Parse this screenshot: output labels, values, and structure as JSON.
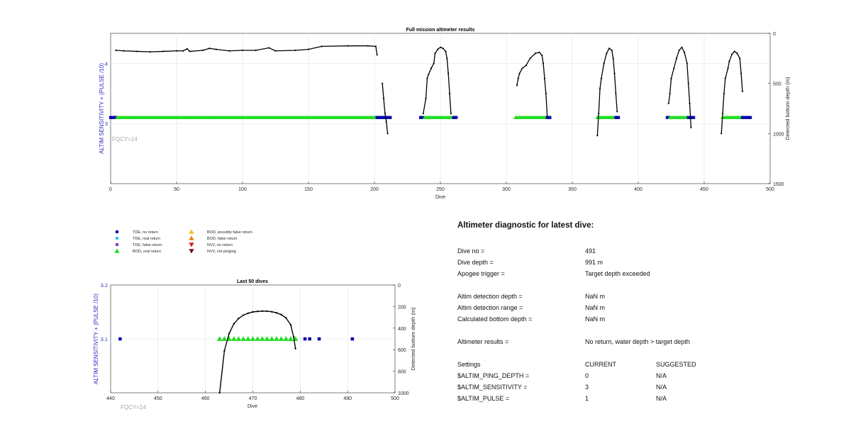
{
  "main_chart": {
    "title": "Full mission altimeter results",
    "xlabel": "Dive",
    "ylabel_left": "ALTIM SENSITIVITY + (PULSE /10)",
    "ylabel_right": "Detected bottom depth (m)",
    "fqcy": "FQCY=14",
    "x_ticks": [
      "0",
      "50",
      "100",
      "150",
      "200",
      "250",
      "300",
      "350",
      "400",
      "450",
      "500"
    ],
    "left_ticks": [
      "4",
      "3"
    ],
    "right_ticks": [
      "0",
      "500",
      "1000",
      "1500"
    ]
  },
  "zoom_chart": {
    "title": "Last 50 dives",
    "xlabel": "Dive",
    "ylabel_left": "ALTIM SENSITIVITY + (PULSE /10)",
    "ylabel_right": "Detected bottom depth (m)",
    "fqcy": "FQCY=14",
    "x_ticks": [
      "440",
      "450",
      "460",
      "470",
      "480",
      "490",
      "500"
    ],
    "left_ticks": [
      "3.2",
      "3.1"
    ],
    "right_ticks": [
      "0",
      "200",
      "400",
      "600",
      "800",
      "1000"
    ]
  },
  "legend": [
    {
      "label": "TDE, no return",
      "symbol": "square",
      "color": "#0000aa"
    },
    {
      "label": "TDE, real return",
      "symbol": "square",
      "color": "#2ec6e6"
    },
    {
      "label": "TDE, false return",
      "symbol": "square",
      "color": "#8040c0"
    },
    {
      "label": "BOD, real return",
      "symbol": "triangle-up",
      "color": "#22dd22"
    },
    {
      "label": "BOD, possibly false return",
      "symbol": "triangle-up",
      "color": "#f2c20c"
    },
    {
      "label": "BOD, false return",
      "symbol": "triangle-up",
      "color": "#f07a10"
    },
    {
      "label": "NVV, no return",
      "symbol": "triangle-down",
      "color": "#d02020"
    },
    {
      "label": "NVV, not pinging",
      "symbol": "triangle-down",
      "color": "#701010"
    }
  ],
  "diagnostic": {
    "title": "Altimeter diagnostic for latest dive:",
    "dive_no_label": "Dive no =",
    "dive_no": "491",
    "dive_depth_label": "Dive depth =",
    "dive_depth": "991 m",
    "apogee_label": "Apogee trigger =",
    "apogee": "Target depth exceeded",
    "det_depth_label": "Altim detection depth =",
    "det_depth": "NaN m",
    "det_range_label": "Altim detection range =",
    "det_range": "NaN m",
    "bottom_label": "Calculated bottom depth =",
    "bottom": "NaN m",
    "results_label": "Altimeter results =",
    "results": "No return, water depth > target depth",
    "settings_label": "Settings",
    "current_label": "CURRENT",
    "suggested_label": "SUGGESTED",
    "settings": [
      {
        "name": "$ALTIM_PING_DEPTH =",
        "current": "0",
        "suggested": "N/A"
      },
      {
        "name": "$ALTIM_SENSITIVITY =",
        "current": "3",
        "suggested": "N/A"
      },
      {
        "name": "$ALTIM_PULSE =",
        "current": "1",
        "suggested": "N/A"
      }
    ]
  },
  "chart_data": [
    {
      "type": "scatter",
      "title": "Full mission altimeter results",
      "xlabel": "Dive",
      "ylabel": "ALTIM SENSITIVITY + (PULSE /10)",
      "y2label": "Detected bottom depth (m)",
      "xlim": [
        0,
        500
      ],
      "y2lim_reversed": [
        0,
        1500
      ],
      "markers_y": 3.1,
      "marker_ranges": [
        {
          "kind": "TDE, no return",
          "from": 0,
          "to": 4
        },
        {
          "kind": "BOD, real return",
          "from": 5,
          "to": 201
        },
        {
          "kind": "TDE, no return",
          "from": 202,
          "to": 212
        },
        {
          "kind": "TDE, no return",
          "from": 235,
          "to": 237
        },
        {
          "kind": "BOD, real return",
          "from": 238,
          "to": 259
        },
        {
          "kind": "TDE, no return",
          "from": 260,
          "to": 262
        },
        {
          "kind": "BOD, real return",
          "from": 307,
          "to": 330
        },
        {
          "kind": "TDE, no return",
          "from": 331,
          "to": 333
        },
        {
          "kind": "BOD, real return",
          "from": 369,
          "to": 382
        },
        {
          "kind": "TDE, no return",
          "from": 383,
          "to": 385
        },
        {
          "kind": "TDE, no return",
          "from": 422,
          "to": 423
        },
        {
          "kind": "BOD, real return",
          "from": 424,
          "to": 437
        },
        {
          "kind": "TDE, no return",
          "from": 438,
          "to": 442
        },
        {
          "kind": "BOD, real return",
          "from": 464,
          "to": 478
        },
        {
          "kind": "TDE, no return",
          "from": 479,
          "to": 485
        }
      ],
      "bottom_depth_segments": [
        [
          [
            4,
            170
          ],
          [
            10,
            175
          ],
          [
            20,
            180
          ],
          [
            30,
            185
          ],
          [
            40,
            180
          ],
          [
            50,
            175
          ],
          [
            55,
            175
          ],
          [
            58,
            155
          ],
          [
            60,
            180
          ],
          [
            70,
            170
          ],
          [
            75,
            150
          ],
          [
            80,
            160
          ],
          [
            90,
            175
          ],
          [
            100,
            170
          ],
          [
            110,
            170
          ],
          [
            120,
            145
          ],
          [
            125,
            175
          ],
          [
            140,
            170
          ],
          [
            150,
            160
          ],
          [
            160,
            130
          ],
          [
            180,
            125
          ],
          [
            195,
            125
          ],
          [
            201,
            130
          ],
          [
            202,
            215
          ]
        ],
        [
          [
            206,
            500
          ],
          [
            207,
            650
          ],
          [
            208,
            800
          ],
          [
            209,
            880
          ],
          [
            210,
            1000
          ]
        ],
        [
          [
            237,
            800
          ],
          [
            239,
            650
          ],
          [
            240,
            450
          ],
          [
            241,
            410
          ],
          [
            243,
            350
          ],
          [
            245,
            300
          ],
          [
            246,
            200
          ],
          [
            248,
            160
          ],
          [
            250,
            140
          ],
          [
            252,
            150
          ],
          [
            254,
            180
          ],
          [
            255,
            250
          ],
          [
            256,
            400
          ],
          [
            257,
            600
          ],
          [
            258,
            800
          ]
        ],
        [
          [
            308,
            520
          ],
          [
            309,
            450
          ],
          [
            310,
            400
          ],
          [
            312,
            350
          ],
          [
            315,
            320
          ],
          [
            318,
            250
          ],
          [
            322,
            200
          ],
          [
            325,
            190
          ],
          [
            327,
            220
          ],
          [
            328,
            300
          ],
          [
            329,
            450
          ],
          [
            330,
            600
          ],
          [
            331,
            830
          ]
        ],
        [
          [
            369,
            1020
          ],
          [
            370,
            800
          ],
          [
            371,
            550
          ],
          [
            372,
            450
          ],
          [
            374,
            300
          ],
          [
            376,
            200
          ],
          [
            378,
            150
          ],
          [
            380,
            170
          ],
          [
            381,
            250
          ],
          [
            382,
            400
          ],
          [
            383,
            600
          ],
          [
            384,
            780
          ]
        ],
        [
          [
            423,
            700
          ],
          [
            424,
            600
          ],
          [
            425,
            450
          ],
          [
            427,
            350
          ],
          [
            429,
            250
          ],
          [
            431,
            170
          ],
          [
            433,
            140
          ],
          [
            435,
            190
          ],
          [
            437,
            300
          ],
          [
            438,
            500
          ],
          [
            439,
            700
          ],
          [
            440,
            940
          ]
        ],
        [
          [
            463,
            1000
          ],
          [
            464,
            800
          ],
          [
            465,
            600
          ],
          [
            466,
            450
          ],
          [
            468,
            350
          ],
          [
            469,
            280
          ],
          [
            471,
            210
          ],
          [
            473,
            180
          ],
          [
            475,
            200
          ],
          [
            477,
            250
          ],
          [
            478,
            400
          ],
          [
            479,
            580
          ]
        ]
      ]
    },
    {
      "type": "scatter",
      "title": "Last 50 dives",
      "xlabel": "Dive",
      "ylabel": "ALTIM SENSITIVITY + (PULSE /10)",
      "y2label": "Detected bottom depth (m)",
      "xlim": [
        440,
        500
      ],
      "ylim": [
        3.0,
        3.2
      ],
      "y2lim_reversed": [
        0,
        1000
      ],
      "markers_y": 3.1,
      "tde_no_return": [
        442,
        481,
        482,
        484,
        491
      ],
      "bod_real_return": [
        463,
        464,
        465,
        466,
        467,
        468,
        469,
        470,
        471,
        472,
        473,
        474,
        475,
        476,
        477,
        478,
        479
      ],
      "bottom_depth": [
        [
          463,
          1000
        ],
        [
          464,
          610
        ],
        [
          465,
          450
        ],
        [
          466,
          360
        ],
        [
          467,
          310
        ],
        [
          468,
          280
        ],
        [
          469,
          262
        ],
        [
          470,
          250
        ],
        [
          471,
          245
        ],
        [
          472,
          242
        ],
        [
          473,
          243
        ],
        [
          474,
          248
        ],
        [
          475,
          258
        ],
        [
          476,
          275
        ],
        [
          477,
          305
        ],
        [
          478,
          370
        ],
        [
          478.6,
          480
        ],
        [
          479,
          590
        ]
      ]
    }
  ]
}
